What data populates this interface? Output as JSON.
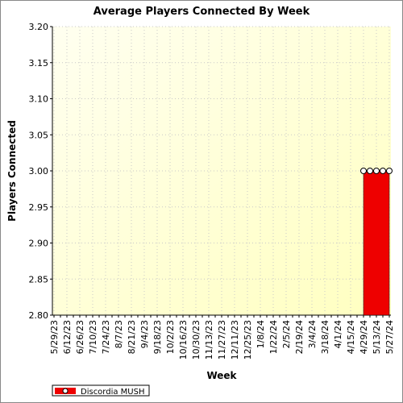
{
  "chart_data": {
    "type": "area",
    "title": "Average Players Connected By Week",
    "x_label": "Week",
    "y_label": "Players Connected",
    "categories": [
      "5/29/23",
      null,
      "6/12/23",
      null,
      "6/26/23",
      null,
      "7/10/23",
      null,
      "7/24/23",
      null,
      "8/7/23",
      null,
      "8/21/23",
      null,
      "9/4/23",
      null,
      "9/18/23",
      null,
      "10/2/23",
      null,
      "10/16/23",
      null,
      "10/30/23",
      null,
      "11/13/23",
      null,
      "11/27/23",
      null,
      "12/11/23",
      null,
      "12/25/23",
      null,
      "1/8/24",
      null,
      "1/22/24",
      null,
      "2/5/24",
      null,
      "2/19/24",
      null,
      "3/4/24",
      null,
      "3/18/24",
      null,
      "4/1/24",
      null,
      "4/15/24",
      null,
      "4/29/24",
      null,
      "5/13/24",
      null,
      "5/27/24"
    ],
    "series": [
      {
        "name": "Discordia MUSH",
        "color": "#ee0000",
        "values": [
          null,
          null,
          null,
          null,
          null,
          null,
          null,
          null,
          null,
          null,
          null,
          null,
          null,
          null,
          null,
          null,
          null,
          null,
          null,
          null,
          null,
          null,
          null,
          null,
          null,
          null,
          null,
          null,
          null,
          null,
          null,
          null,
          null,
          null,
          null,
          null,
          null,
          null,
          null,
          null,
          null,
          null,
          null,
          null,
          null,
          null,
          null,
          null,
          3.0,
          3.0,
          3.0,
          3.0,
          3.0
        ]
      }
    ],
    "ylim": [
      2.8,
      3.2
    ],
    "yticks": [
      {
        "value": 2.8,
        "label": "2.80"
      },
      {
        "value": 2.85,
        "label": "2.85"
      },
      {
        "value": 2.9,
        "label": "2.90"
      },
      {
        "value": 2.95,
        "label": "2.95"
      },
      {
        "value": 3.0,
        "label": "3.00"
      },
      {
        "value": 3.05,
        "label": "3.05"
      },
      {
        "value": 3.1,
        "label": "3.10"
      },
      {
        "value": 3.15,
        "label": "3.15"
      },
      {
        "value": 3.2,
        "label": "3.20"
      }
    ],
    "grid": true
  }
}
